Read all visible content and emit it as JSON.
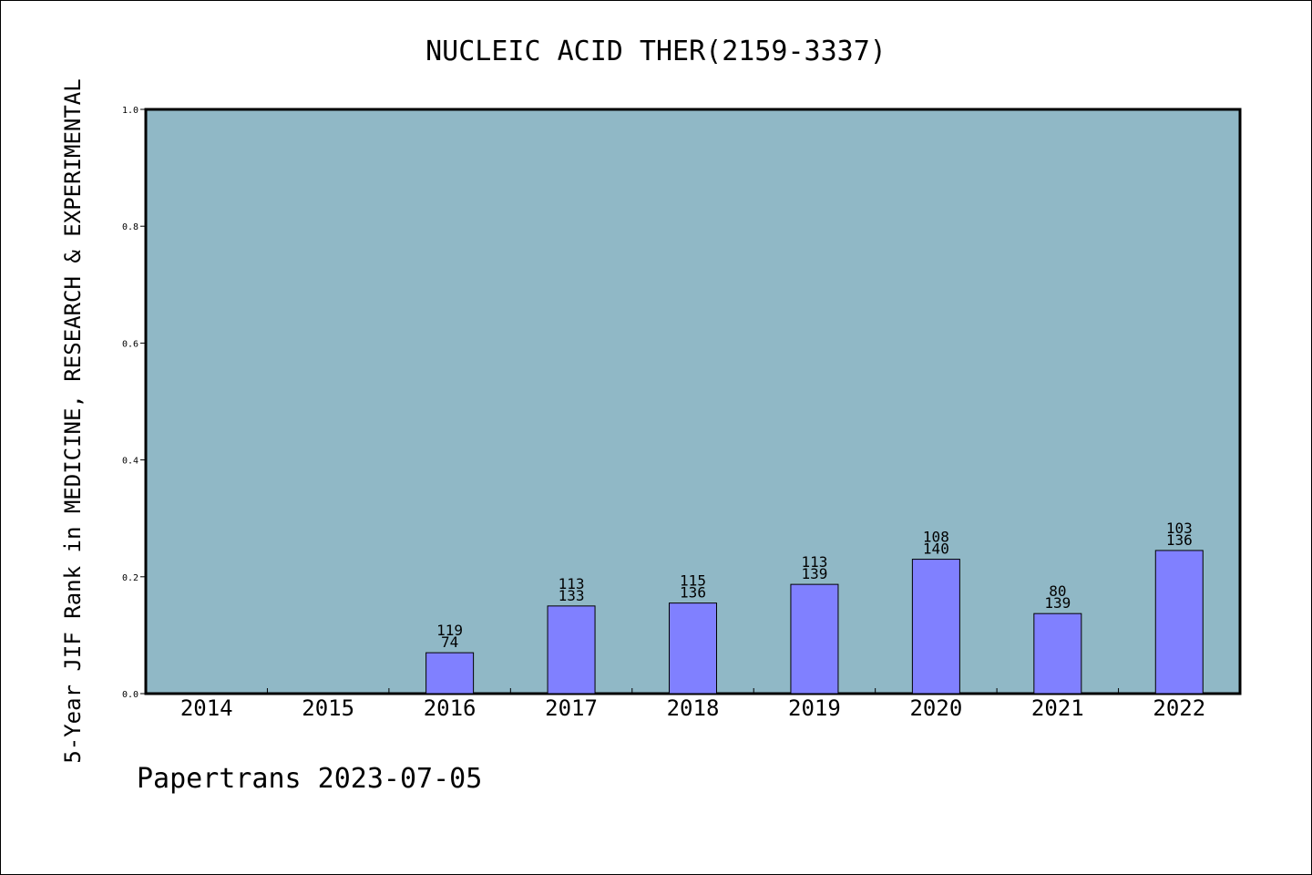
{
  "chart_data": {
    "type": "bar",
    "title": "NUCLEIC ACID THER(2159-3337)",
    "ylabel": "5-Year JIF Rank in MEDICINE, RESEARCH & EXPERIMENTAL",
    "xlabel": "",
    "categories": [
      "2014",
      "2015",
      "2016",
      "2017",
      "2018",
      "2019",
      "2020",
      "2021",
      "2022"
    ],
    "values": [
      null,
      null,
      0.07,
      0.15,
      0.155,
      0.187,
      0.23,
      0.137,
      0.245
    ],
    "labels_top": [
      "",
      "",
      "119",
      "113",
      "115",
      "113",
      "108",
      "80",
      "103"
    ],
    "labels_bottom": [
      "",
      "",
      "74",
      "133",
      "136",
      "139",
      "140",
      "139",
      "136"
    ],
    "ylim": [
      0,
      1.0
    ],
    "yticks": [
      "0.0",
      "0.2",
      "0.4",
      "0.6",
      "0.8",
      "1.0"
    ],
    "grid": false,
    "colors": {
      "plot_bg": "#90b8c6",
      "bar": "#8080ff"
    },
    "footer": "Papertrans 2023-07-05"
  }
}
